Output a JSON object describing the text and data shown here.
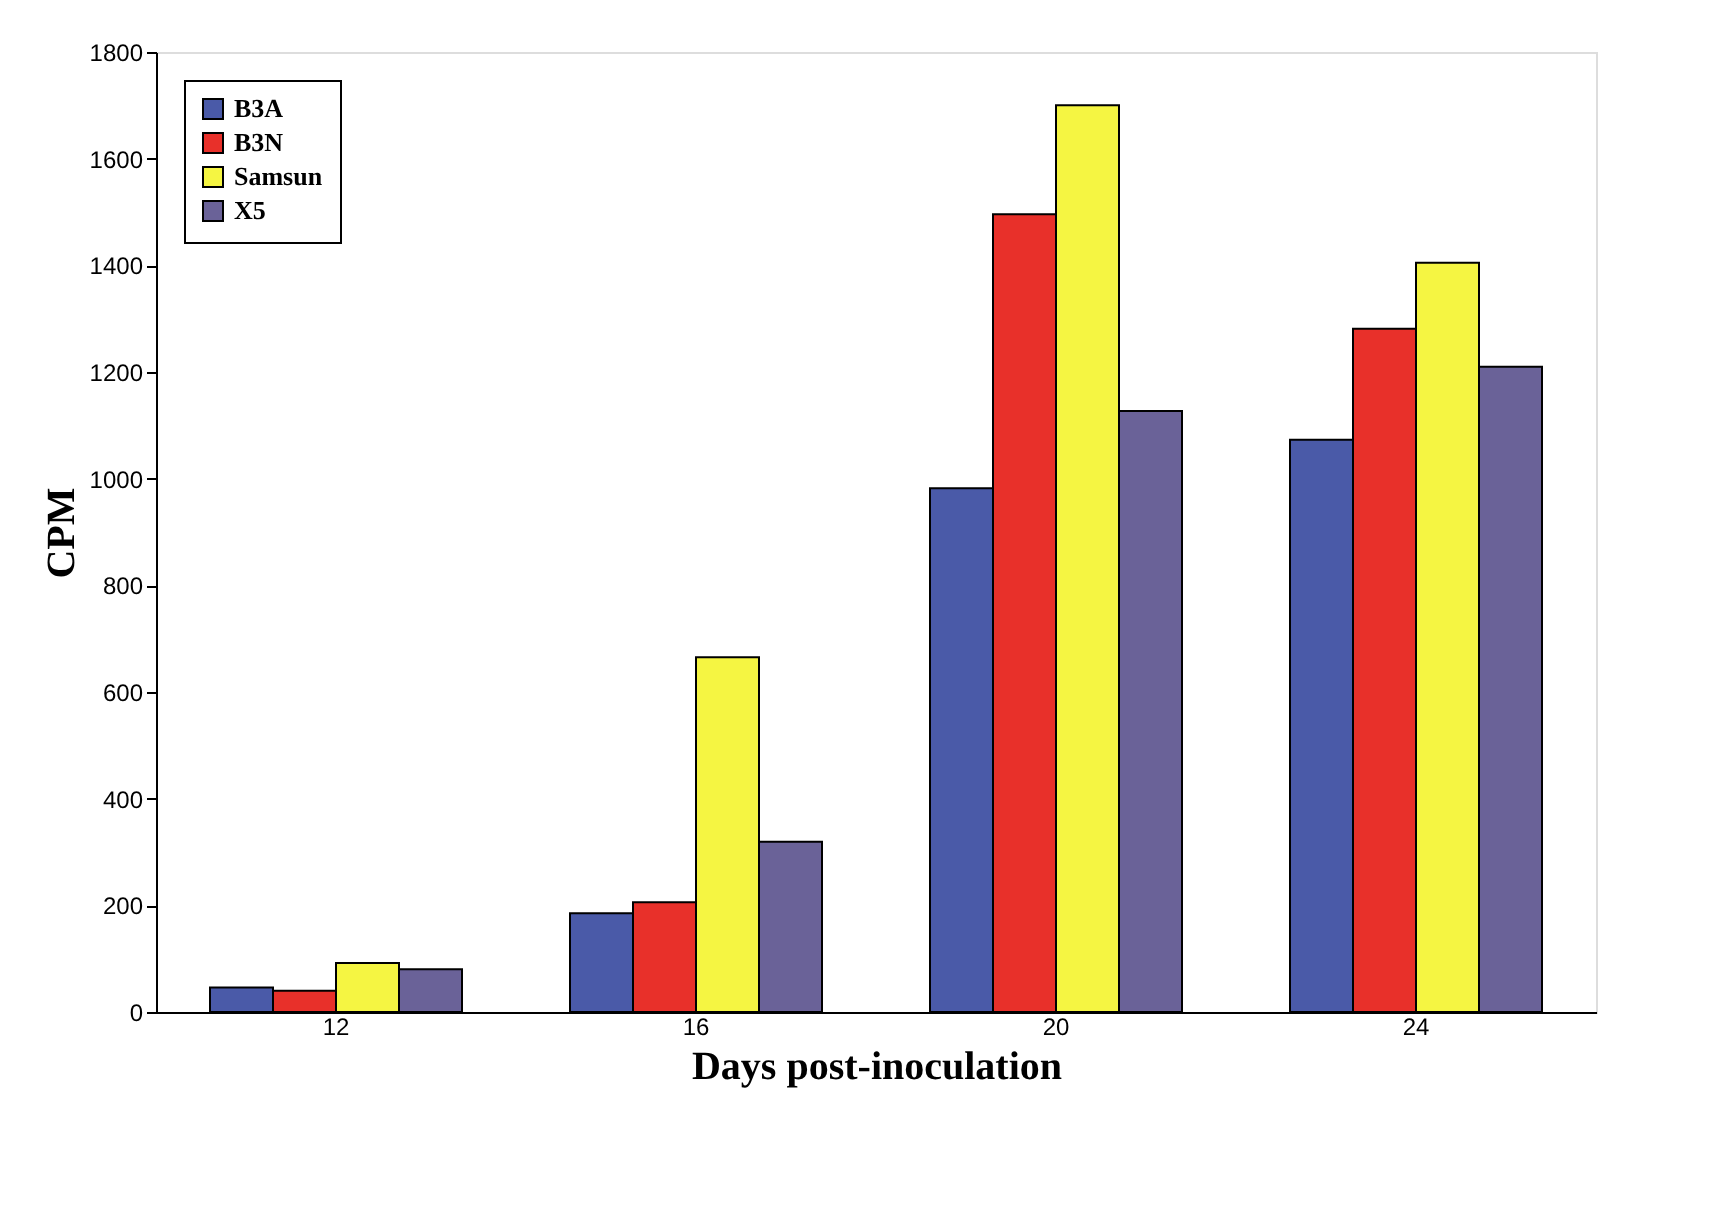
{
  "chart_data": {
    "type": "bar",
    "xlabel": "Days post-inoculation",
    "ylabel": "CPM",
    "categories": [
      "12",
      "16",
      "20",
      "24"
    ],
    "series": [
      {
        "name": "B3A",
        "color": "#4a5aa8",
        "values": [
          46,
          185,
          982,
          1073
        ]
      },
      {
        "name": "B3N",
        "color": "#e8302a",
        "values": [
          40,
          206,
          1496,
          1281
        ]
      },
      {
        "name": "Samsun",
        "color": "#f5f542",
        "values": [
          92,
          665,
          1700,
          1405
        ]
      },
      {
        "name": "X5",
        "color": "#6a6298",
        "values": [
          80,
          319,
          1127,
          1210
        ]
      }
    ],
    "ylim": [
      0,
      1800
    ],
    "yticks": [
      0,
      200,
      400,
      600,
      800,
      1000,
      1200,
      1400,
      1600,
      1800
    ],
    "grid": false,
    "legend": "top left"
  }
}
